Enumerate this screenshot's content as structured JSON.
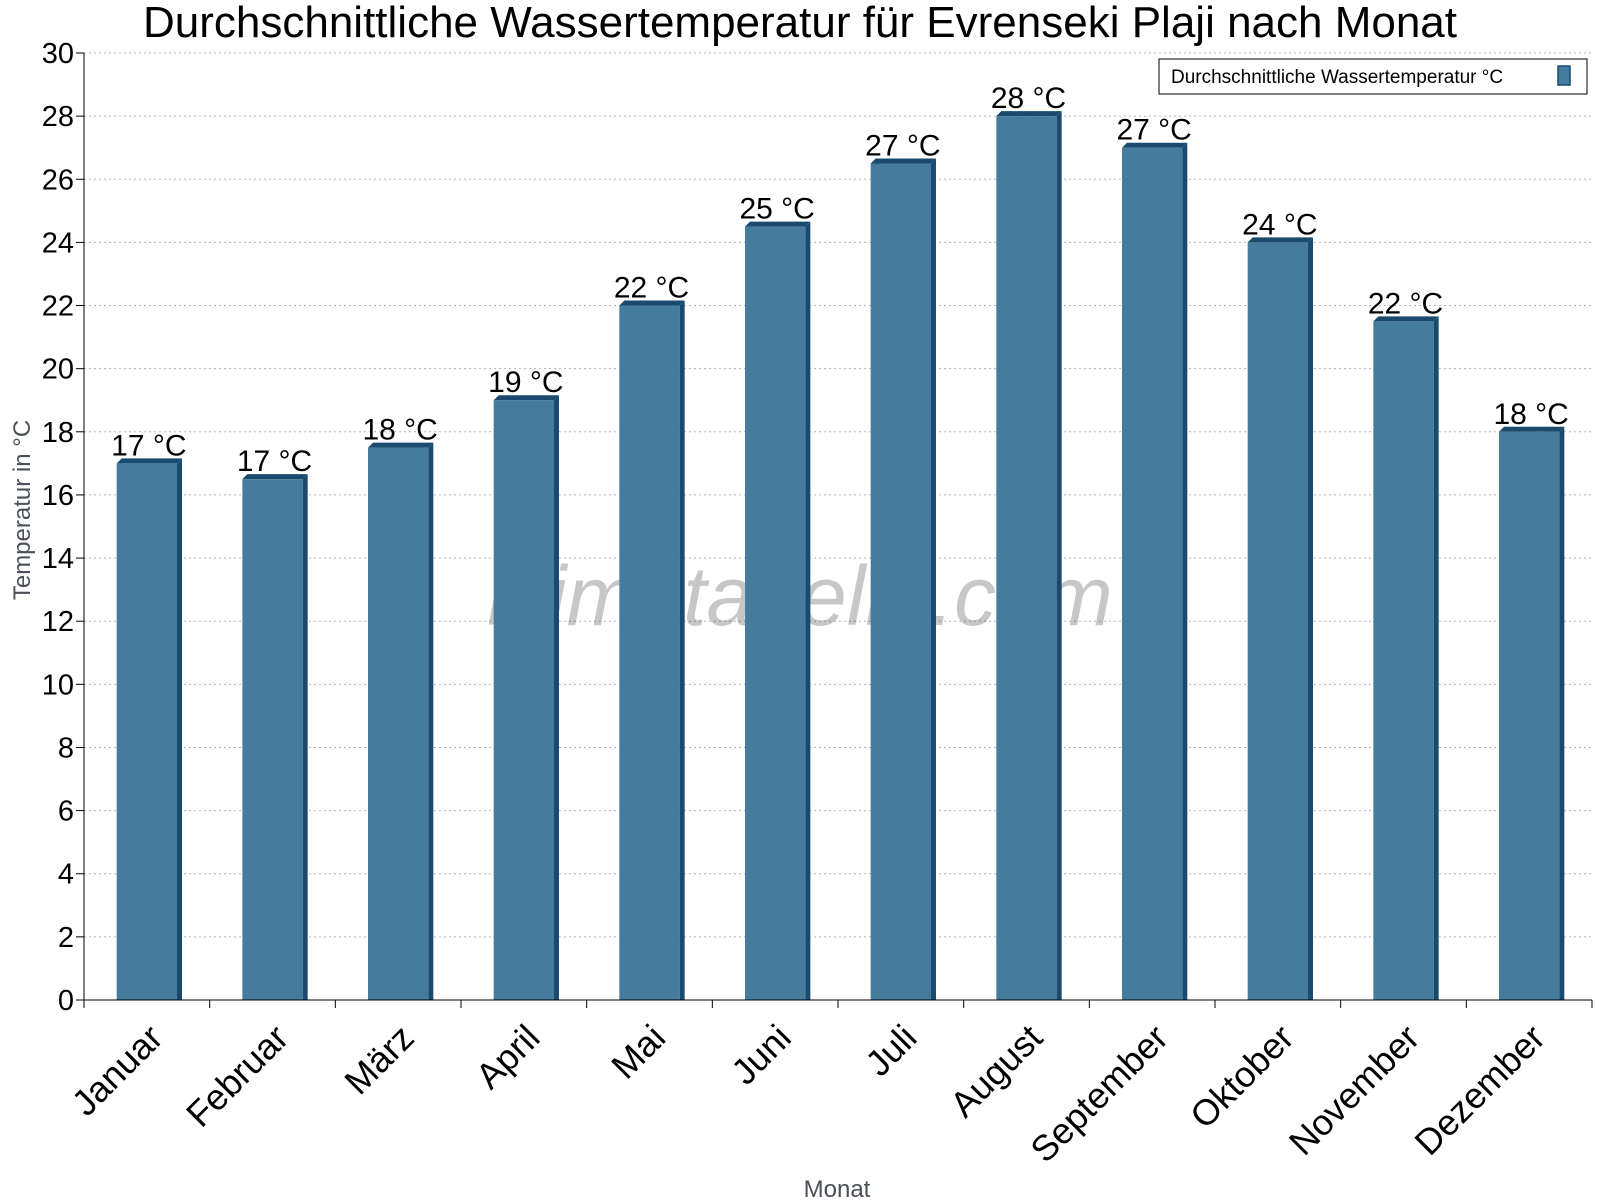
{
  "chart_data": {
    "type": "bar",
    "title": "Durchschnittliche Wassertemperatur für Evrenseki Plaji nach Monat",
    "xlabel": "Monat",
    "ylabel": "Temperatur in °C",
    "ylim": [
      0,
      30
    ],
    "ytick_step": 2,
    "grid": true,
    "legend_position": "top-right",
    "watermark": "klimatabelle.com",
    "categories": [
      "Januar",
      "Februar",
      "März",
      "April",
      "Mai",
      "Juni",
      "Juli",
      "August",
      "September",
      "Oktober",
      "November",
      "Dezember"
    ],
    "series": [
      {
        "name": "Durchschnittliche Wassertemperatur °C",
        "color": "#457b9d",
        "values": [
          17,
          16.5,
          17.5,
          19,
          22,
          24.5,
          26.5,
          28,
          27,
          24,
          21.5,
          18
        ],
        "labels": [
          "17 °C",
          "17 °C",
          "18 °C",
          "19 °C",
          "22 °C",
          "25 °C",
          "27 °C",
          "28 °C",
          "27 °C",
          "24 °C",
          "22 °C",
          "18 °C"
        ]
      }
    ]
  }
}
